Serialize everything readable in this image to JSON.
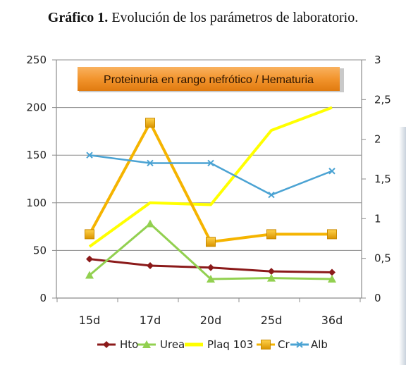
{
  "caption": {
    "bold": "Gráfico 1.",
    "text": " Evolución de los parámetros de laboratorio."
  },
  "chart_data": {
    "type": "line",
    "categories": [
      "15d",
      "17d",
      "20d",
      "25d",
      "36d"
    ],
    "annotation": "Proteinuria en rango nefrótico  / Hematuria",
    "y_left": {
      "ylim": [
        0,
        250
      ],
      "ticks": [
        "0",
        "50",
        "100",
        "150",
        "200",
        "250"
      ]
    },
    "y_right": {
      "ylim": [
        0,
        3
      ],
      "ticks": [
        "0",
        "0,5",
        "1",
        "1,5",
        "2",
        "2,5",
        "3"
      ]
    },
    "grid": "horizontal",
    "legend_position": "bottom",
    "series": [
      {
        "name": "Hto",
        "axis": "left",
        "color": "#8b1a1a",
        "marker": "diamond",
        "values": [
          41,
          34,
          32,
          28,
          27
        ]
      },
      {
        "name": "Urea",
        "axis": "left",
        "color": "#92d050",
        "marker": "triangle",
        "values": [
          24,
          78,
          20,
          21,
          20
        ]
      },
      {
        "name": "Plaq 103",
        "axis": "left",
        "color": "#ffff00",
        "marker": "none",
        "values": [
          54,
          100,
          98,
          176,
          200
        ]
      },
      {
        "name": "Cr",
        "axis": "left",
        "color": "#f5b400",
        "marker": "square",
        "values": [
          67,
          184,
          59,
          67,
          67
        ]
      },
      {
        "name": "Alb",
        "axis": "right",
        "color": "#4ba3d3",
        "marker": "x",
        "values": [
          1.8,
          1.7,
          1.7,
          1.3,
          1.6
        ]
      }
    ]
  }
}
